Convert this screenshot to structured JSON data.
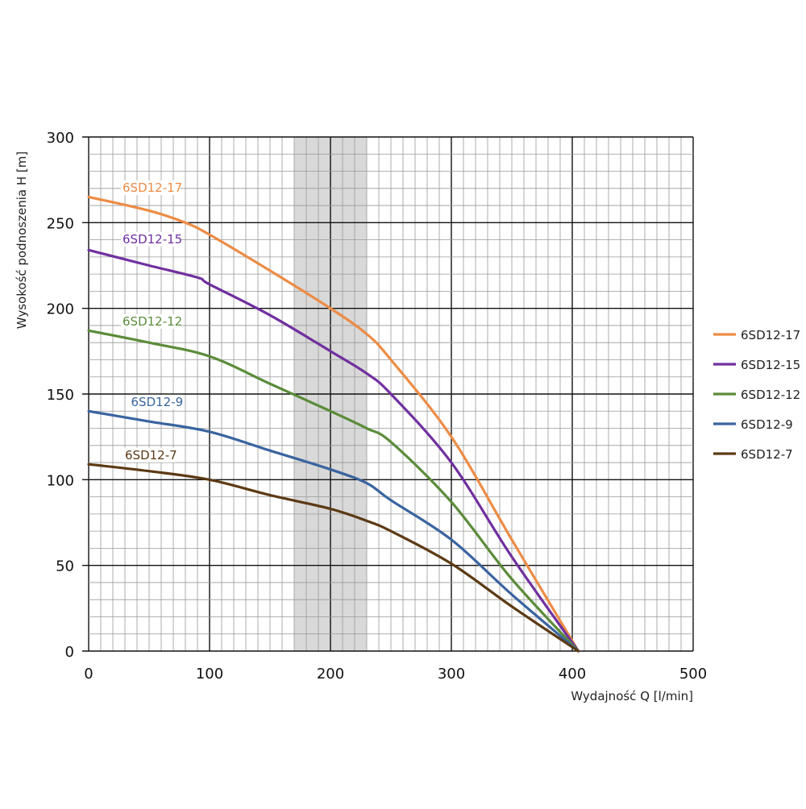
{
  "chart_data": {
    "type": "line",
    "title": "",
    "xlabel": "Wydajność Q [l/min]",
    "ylabel": "Wysokość podnoszenia H [m]",
    "xlim": [
      0,
      500
    ],
    "ylim": [
      0,
      300
    ],
    "xticks": [
      0,
      100,
      200,
      300,
      400,
      500
    ],
    "yticks": [
      0,
      50,
      100,
      150,
      200,
      250,
      300
    ],
    "x_minor_step": 20,
    "y_minor_step": 10,
    "grid": true,
    "highlight_band": [
      170,
      230
    ],
    "legend_position": "right",
    "series": [
      {
        "name": "6SD12-17",
        "color": "#ED8C45",
        "points": [
          [
            0,
            265
          ],
          [
            50,
            257
          ],
          [
            80,
            250
          ],
          [
            100,
            243
          ],
          [
            150,
            222
          ],
          [
            200,
            200
          ],
          [
            230,
            185
          ],
          [
            250,
            170
          ],
          [
            300,
            125
          ],
          [
            350,
            65
          ],
          [
            405,
            0
          ]
        ]
      },
      {
        "name": "6SD12-15",
        "color": "#7030A0",
        "points": [
          [
            0,
            234
          ],
          [
            50,
            225
          ],
          [
            90,
            218
          ],
          [
            100,
            214
          ],
          [
            150,
            196
          ],
          [
            200,
            175
          ],
          [
            230,
            162
          ],
          [
            250,
            150
          ],
          [
            300,
            110
          ],
          [
            350,
            55
          ],
          [
            405,
            0
          ]
        ]
      },
      {
        "name": "6SD12-12",
        "color": "#5B8C3A",
        "points": [
          [
            0,
            187
          ],
          [
            50,
            180
          ],
          [
            100,
            172
          ],
          [
            150,
            156
          ],
          [
            200,
            140
          ],
          [
            230,
            130
          ],
          [
            250,
            122
          ],
          [
            300,
            87
          ],
          [
            350,
            42
          ],
          [
            405,
            0
          ]
        ]
      },
      {
        "name": "6SD12-9",
        "color": "#3A64A0",
        "points": [
          [
            0,
            140
          ],
          [
            50,
            134
          ],
          [
            100,
            128
          ],
          [
            150,
            117
          ],
          [
            200,
            106
          ],
          [
            230,
            98
          ],
          [
            250,
            88
          ],
          [
            300,
            65
          ],
          [
            350,
            33
          ],
          [
            405,
            0
          ]
        ]
      },
      {
        "name": "6SD12-7",
        "color": "#5C3A14",
        "points": [
          [
            0,
            109
          ],
          [
            50,
            105
          ],
          [
            100,
            100
          ],
          [
            150,
            91
          ],
          [
            200,
            83
          ],
          [
            230,
            76
          ],
          [
            250,
            70
          ],
          [
            300,
            51
          ],
          [
            350,
            26
          ],
          [
            405,
            0
          ]
        ]
      }
    ],
    "curve_labels": [
      {
        "series": "6SD12-17",
        "text": "6SD12-17",
        "at": [
          28,
          268
        ]
      },
      {
        "series": "6SD12-15",
        "text": "6SD12-15",
        "at": [
          28,
          238
        ]
      },
      {
        "series": "6SD12-12",
        "text": "6SD12-12",
        "at": [
          28,
          190
        ]
      },
      {
        "series": "6SD12-9",
        "text": "6SD12-9",
        "at": [
          35,
          143
        ]
      },
      {
        "series": "6SD12-7",
        "text": "6SD12-7",
        "at": [
          30,
          112
        ]
      }
    ]
  }
}
